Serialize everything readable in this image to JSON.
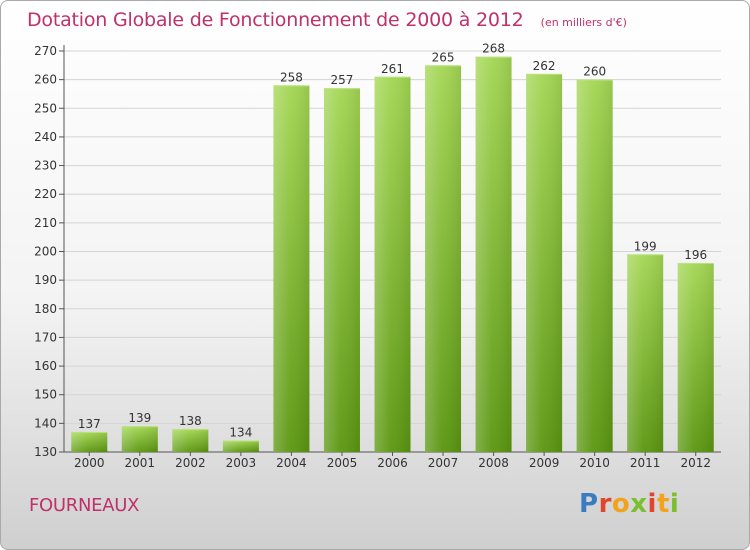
{
  "header": {
    "title": "Dotation Globale de Fonctionnement de 2000 à 2012",
    "subtitle": "(en milliers d'€)"
  },
  "footer": {
    "commune": "FOURNEAUX",
    "logo_text": "Proxiti"
  },
  "colors": {
    "title": "#c0306a",
    "bar_top": "#9fd24e",
    "bar_bottom": "#5e9a12",
    "grid": "#d4d4d4"
  },
  "chart_data": {
    "type": "bar",
    "title": "Dotation Globale de Fonctionnement de 2000 à 2012",
    "subtitle": "(en milliers d'€)",
    "xlabel": "",
    "ylabel": "",
    "categories": [
      "2000",
      "2001",
      "2002",
      "2003",
      "2004",
      "2005",
      "2006",
      "2007",
      "2008",
      "2009",
      "2010",
      "2011",
      "2012"
    ],
    "values": [
      137,
      139,
      138,
      134,
      258,
      257,
      261,
      265,
      268,
      262,
      260,
      199,
      196
    ],
    "ylim": [
      130,
      270
    ],
    "yticks": [
      130,
      140,
      150,
      160,
      170,
      180,
      190,
      200,
      210,
      220,
      230,
      240,
      250,
      260,
      270
    ],
    "grid": true,
    "data_labels": true
  }
}
